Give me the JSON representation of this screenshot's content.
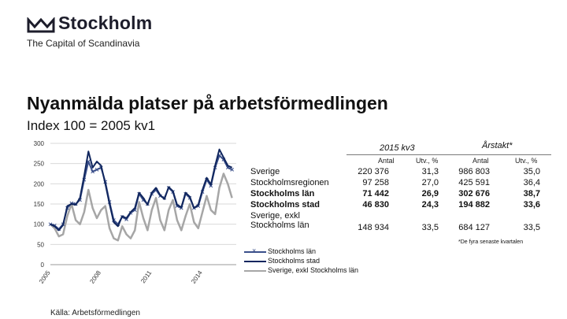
{
  "brand": {
    "name": "Stockholm",
    "tagline": "The Capital of Scandinavia"
  },
  "title": "Nyanmälda platser på arbetsförmedlingen",
  "subtitle": "Index 100 = 2005 kv1",
  "chart_data": {
    "type": "line",
    "ylim": [
      0,
      300
    ],
    "yticks": [
      0,
      50,
      100,
      150,
      200,
      250,
      300
    ],
    "xlim": [
      2005.0,
      2016.0
    ],
    "xtick_labels": [
      "2005",
      "2008",
      "2011",
      "2014"
    ],
    "xtick_values": [
      2005,
      2008,
      2011,
      2014
    ],
    "legend_position": "bottom",
    "series": [
      {
        "name": "Stockholms län",
        "color": "#3a4f8a",
        "marker": "x",
        "x": [
          2005.0,
          2005.25,
          2005.5,
          2005.75,
          2006.0,
          2006.25,
          2006.5,
          2006.75,
          2007.0,
          2007.25,
          2007.5,
          2007.75,
          2008.0,
          2008.25,
          2008.5,
          2008.75,
          2009.0,
          2009.25,
          2009.5,
          2009.75,
          2010.0,
          2010.25,
          2010.5,
          2010.75,
          2011.0,
          2011.25,
          2011.5,
          2011.75,
          2012.0,
          2012.25,
          2012.5,
          2012.75,
          2013.0,
          2013.25,
          2013.5,
          2013.75,
          2014.0,
          2014.25,
          2014.5,
          2014.75,
          2015.0,
          2015.25,
          2015.5,
          2015.75
        ],
        "values": [
          100,
          97,
          88,
          100,
          140,
          152,
          150,
          160,
          210,
          255,
          230,
          235,
          240,
          205,
          155,
          110,
          100,
          118,
          112,
          128,
          135,
          175,
          160,
          150,
          175,
          185,
          170,
          165,
          190,
          180,
          145,
          140,
          175,
          165,
          140,
          145,
          180,
          210,
          195,
          240,
          270,
          260,
          240,
          235
        ]
      },
      {
        "name": "Stockholms stad",
        "color": "#10265e",
        "marker": "",
        "x": [
          2005.0,
          2005.25,
          2005.5,
          2005.75,
          2006.0,
          2006.25,
          2006.5,
          2006.75,
          2007.0,
          2007.25,
          2007.5,
          2007.75,
          2008.0,
          2008.25,
          2008.5,
          2008.75,
          2009.0,
          2009.25,
          2009.5,
          2009.75,
          2010.0,
          2010.25,
          2010.5,
          2010.75,
          2011.0,
          2011.25,
          2011.5,
          2011.75,
          2012.0,
          2012.25,
          2012.5,
          2012.75,
          2013.0,
          2013.25,
          2013.5,
          2013.75,
          2014.0,
          2014.25,
          2014.5,
          2014.75,
          2015.0,
          2015.25,
          2015.5,
          2015.75
        ],
        "values": [
          100,
          95,
          85,
          98,
          145,
          150,
          148,
          165,
          220,
          280,
          240,
          255,
          245,
          200,
          150,
          105,
          95,
          120,
          115,
          130,
          140,
          178,
          165,
          148,
          178,
          190,
          172,
          162,
          192,
          182,
          148,
          142,
          178,
          168,
          140,
          148,
          185,
          215,
          198,
          245,
          285,
          265,
          245,
          240
        ]
      },
      {
        "name": "Sverige, exkl Stockholms län",
        "color": "#a6a6a6",
        "marker": "",
        "x": [
          2005.0,
          2005.25,
          2005.5,
          2005.75,
          2006.0,
          2006.25,
          2006.5,
          2006.75,
          2007.0,
          2007.25,
          2007.5,
          2007.75,
          2008.0,
          2008.25,
          2008.5,
          2008.75,
          2009.0,
          2009.25,
          2009.5,
          2009.75,
          2010.0,
          2010.25,
          2010.5,
          2010.75,
          2011.0,
          2011.25,
          2011.5,
          2011.75,
          2012.0,
          2012.25,
          2012.5,
          2012.75,
          2013.0,
          2013.25,
          2013.5,
          2013.75,
          2014.0,
          2014.25,
          2014.5,
          2014.75,
          2015.0,
          2015.25,
          2015.5,
          2015.75
        ],
        "values": [
          100,
          90,
          70,
          75,
          120,
          150,
          110,
          100,
          130,
          185,
          140,
          115,
          135,
          145,
          90,
          65,
          60,
          95,
          75,
          65,
          85,
          155,
          115,
          85,
          135,
          165,
          110,
          85,
          135,
          160,
          110,
          85,
          120,
          150,
          105,
          90,
          130,
          170,
          135,
          125,
          190,
          225,
          200,
          165
        ]
      }
    ]
  },
  "table": {
    "col_group_1": "2015 kv3",
    "col_group_2": "Årstakt*",
    "col_headers": [
      "Antal",
      "Utv., %",
      "Antal",
      "Utv., %"
    ],
    "rows": [
      {
        "label": "Sverige",
        "bold": false,
        "values": [
          "220 376",
          "31,3",
          "986 803",
          "35,0"
        ]
      },
      {
        "label": "Stockholmsregionen",
        "bold": false,
        "values": [
          "97 258",
          "27,0",
          "425 591",
          "36,4"
        ]
      },
      {
        "label": "Stockholms län",
        "bold": true,
        "values": [
          "71 442",
          "26,9",
          "302 676",
          "38,7"
        ]
      },
      {
        "label": "Stockholms stad",
        "bold": true,
        "values": [
          "46 830",
          "24,3",
          "194 882",
          "33,6"
        ]
      },
      {
        "label": "Sverige, exkl\nStockholms län",
        "bold": false,
        "values": [
          "148 934",
          "33,5",
          "684 127",
          "33,5"
        ]
      }
    ],
    "footnote": "*De fyra senaste kvartalen"
  },
  "source": "Källa: Arbetsförmedlingen"
}
